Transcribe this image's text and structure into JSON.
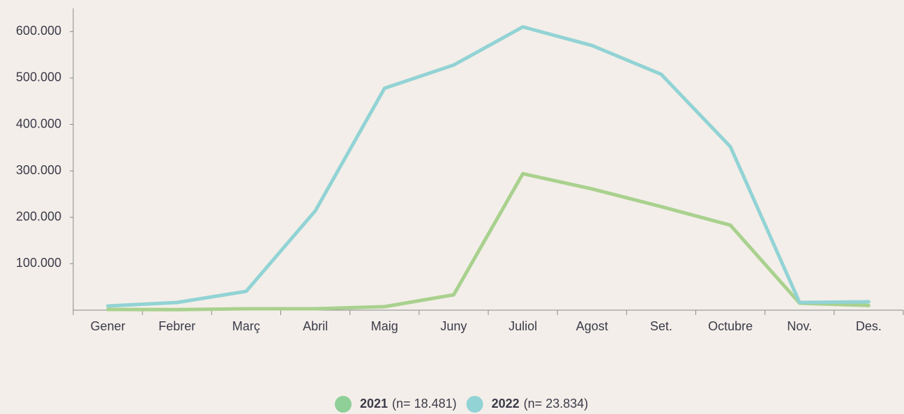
{
  "chart_data": {
    "type": "line",
    "categories": [
      "Gener",
      "Febrer",
      "Març",
      "Abril",
      "Maig",
      "Juny",
      "Juliol",
      "Agost",
      "Set.",
      "Octubre",
      "Nov.",
      "Des."
    ],
    "series": [
      {
        "name": "2021",
        "legend_note": "(n= 18.481)",
        "color": "#a9d18e",
        "marker_color": "#8fcf98",
        "values": [
          1500,
          1000,
          3000,
          3000,
          7500,
          33000,
          294000,
          261000,
          223000,
          183000,
          15000,
          10000
        ]
      },
      {
        "name": "2022",
        "legend_note": "(n= 23.834)",
        "color": "#92d3d5",
        "marker_color": "#92d3d5",
        "values": [
          9000,
          16500,
          40500,
          214000,
          478000,
          528000,
          610000,
          570000,
          508000,
          352000,
          16500,
          18000
        ]
      }
    ],
    "ylim": [
      0,
      650000
    ],
    "yticks": [
      {
        "value": 100000,
        "label": "100.000"
      },
      {
        "value": 200000,
        "label": "200.000"
      },
      {
        "value": 300000,
        "label": "300.000"
      },
      {
        "value": 400000,
        "label": "400.000"
      },
      {
        "value": 500000,
        "label": "500.000"
      },
      {
        "value": 600000,
        "label": "600.000"
      }
    ],
    "legend": "bottom"
  }
}
